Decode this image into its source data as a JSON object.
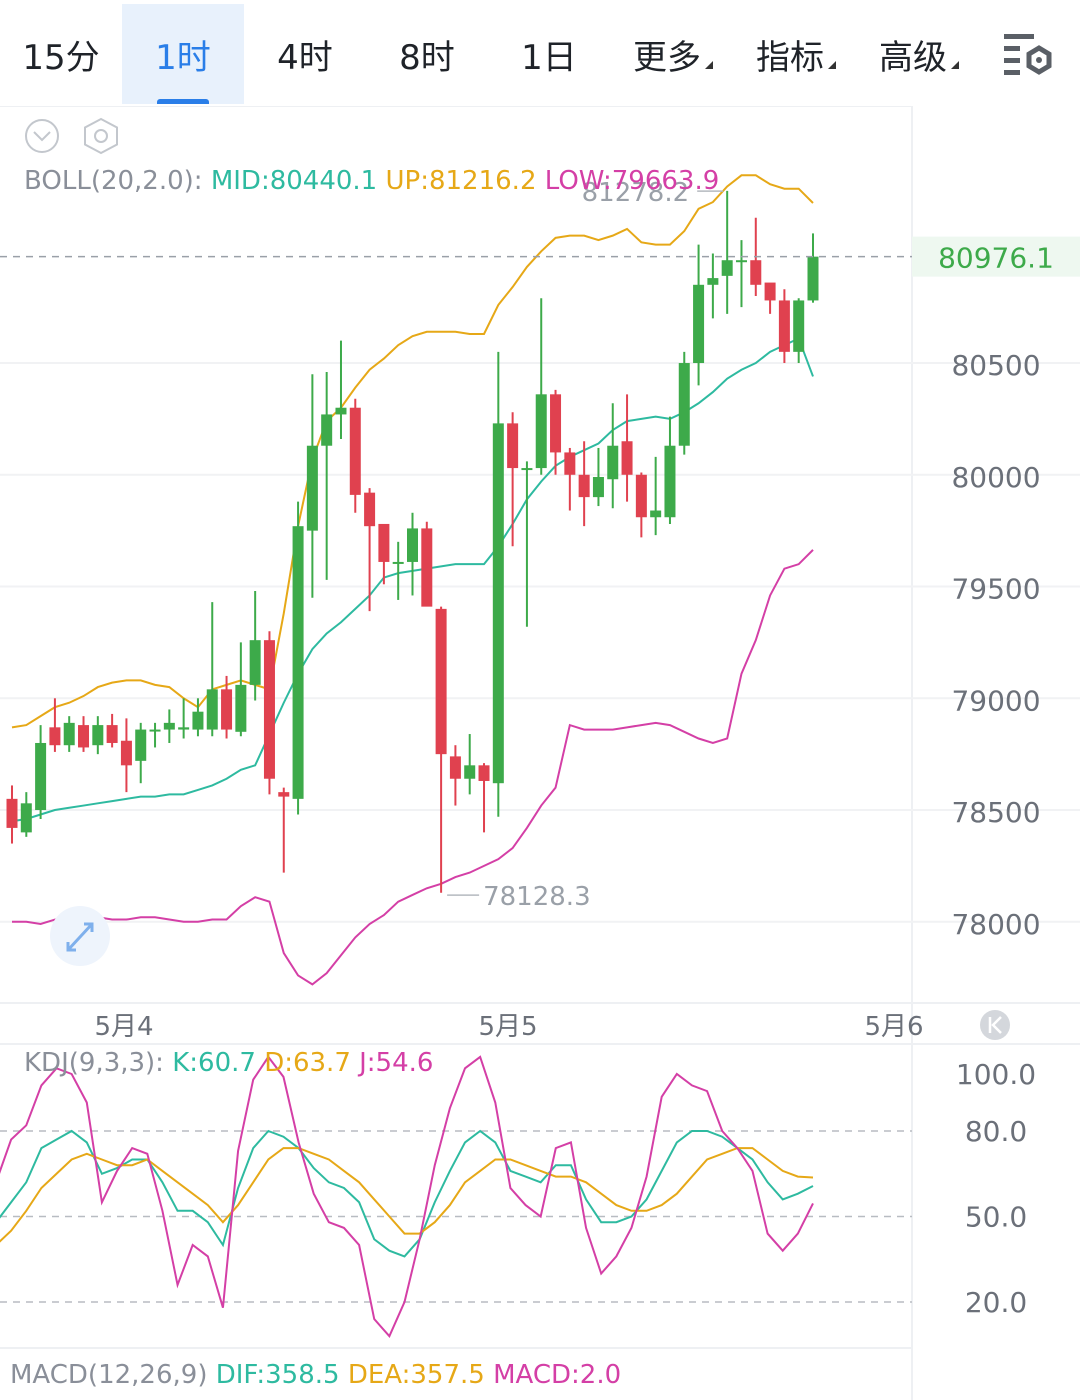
{
  "tabs": [
    {
      "label": "15分",
      "active": false
    },
    {
      "label": "1时",
      "active": true
    },
    {
      "label": "4时",
      "active": false
    },
    {
      "label": "8时",
      "active": false
    },
    {
      "label": "1日",
      "active": false
    },
    {
      "label": "更多",
      "active": false,
      "dropdown": true
    },
    {
      "label": "指标",
      "active": false,
      "dropdown": true
    },
    {
      "label": "高级",
      "active": false,
      "dropdown": true
    }
  ],
  "icons": {
    "settings": "chart-settings-icon",
    "collapse": "chevron-down-circle-icon",
    "gear": "hexagon-gear-icon",
    "expand": "expand-arrows-icon",
    "scroll_latest": "scroll-to-latest-icon"
  },
  "boll": {
    "label": "BOLL(20,2.0):",
    "mid": "MID:80440.1",
    "up": "UP:81216.2",
    "low": "LOW:79663.9"
  },
  "kdj": {
    "label": "KDJ(9,3,3):",
    "k": "K:60.7",
    "d": "D:63.7",
    "j": "J:54.6"
  },
  "macd": {
    "label": "MACD(12,26,9)",
    "dif": "DIF:358.5",
    "dea": "DEA:357.5",
    "macd": "MACD:2.0"
  },
  "colors": {
    "up": "#3daa4a",
    "down": "#e0414f",
    "mid": "#2ebaa0",
    "upper": "#e6a817",
    "lower": "#d43fa6",
    "current": "#3daa4a"
  },
  "chart_data": [
    {
      "type": "candlestick",
      "x_labels": [
        "5月4",
        "5月5",
        "5月6"
      ],
      "y_ticks": [
        80500,
        80000,
        79500,
        79000,
        78500,
        78000
      ],
      "ylim": [
        77650,
        81650
      ],
      "current_price": "80976.1",
      "max_label": "81278.2",
      "min_label": "78128.3",
      "candles": [
        [
          78550,
          78420,
          78610,
          78350
        ],
        [
          78400,
          78530,
          78580,
          78380
        ],
        [
          78500,
          78800,
          78880,
          78460
        ],
        [
          78870,
          78790,
          79000,
          78760
        ],
        [
          78790,
          78890,
          78920,
          78760
        ],
        [
          78880,
          78780,
          78920,
          78760
        ],
        [
          78790,
          78880,
          78920,
          78750
        ],
        [
          78880,
          78800,
          78930,
          78780
        ],
        [
          78810,
          78700,
          78910,
          78580
        ],
        [
          78720,
          78860,
          78890,
          78620
        ],
        [
          78860,
          78860,
          78890,
          78780
        ],
        [
          78860,
          78890,
          78950,
          78800
        ],
        [
          78860,
          78870,
          79000,
          78820
        ],
        [
          78860,
          78940,
          79000,
          78830
        ],
        [
          78860,
          79040,
          79430,
          78830
        ],
        [
          79040,
          78860,
          79100,
          78820
        ],
        [
          78850,
          79060,
          79250,
          78830
        ],
        [
          79060,
          79260,
          79480,
          78990
        ],
        [
          79260,
          78640,
          79300,
          78570
        ],
        [
          78580,
          78560,
          78600,
          78220
        ],
        [
          78550,
          79770,
          79880,
          78480
        ],
        [
          79750,
          80130,
          80450,
          79450
        ],
        [
          80130,
          80270,
          80460,
          79530
        ],
        [
          80270,
          80300,
          80600,
          80160
        ],
        [
          80300,
          79910,
          80340,
          79830
        ],
        [
          79920,
          79770,
          79940,
          79390
        ],
        [
          79780,
          79610,
          79770,
          79510
        ],
        [
          79610,
          79610,
          79700,
          79440
        ],
        [
          79610,
          79760,
          79830,
          79460
        ],
        [
          79760,
          79410,
          79790,
          79480
        ],
        [
          79400,
          78750,
          79410,
          78130
        ],
        [
          78740,
          78640,
          78790,
          78520
        ],
        [
          78640,
          78700,
          78840,
          78570
        ],
        [
          78700,
          78630,
          78710,
          78400
        ],
        [
          78620,
          80230,
          80550,
          78470
        ],
        [
          80230,
          80030,
          80280,
          79680
        ],
        [
          80030,
          80030,
          80060,
          79320
        ],
        [
          80030,
          80360,
          80790,
          80000
        ],
        [
          80360,
          80100,
          80380,
          80000
        ],
        [
          80100,
          80000,
          80120,
          79840
        ],
        [
          80000,
          79900,
          80150,
          79770
        ],
        [
          79900,
          79990,
          80120,
          79860
        ],
        [
          79980,
          80130,
          80320,
          79850
        ],
        [
          80150,
          80000,
          80360,
          79880
        ],
        [
          80000,
          79810,
          80010,
          79720
        ],
        [
          79810,
          79840,
          80080,
          79730
        ],
        [
          79810,
          80130,
          80260,
          79780
        ],
        [
          80130,
          80500,
          80550,
          80090
        ],
        [
          80500,
          80850,
          81030,
          80400
        ],
        [
          80850,
          80880,
          80990,
          80700
        ],
        [
          80890,
          80960,
          81270,
          80720
        ],
        [
          80960,
          80960,
          81050,
          80750
        ],
        [
          80960,
          80850,
          81150,
          80800
        ],
        [
          80860,
          80780,
          80830,
          80720
        ],
        [
          80780,
          80550,
          80830,
          80500
        ],
        [
          80550,
          80780,
          80790,
          80500
        ],
        [
          80780,
          80976,
          81080,
          80770
        ]
      ],
      "bands": {
        "upper": [
          78870,
          78880,
          78920,
          78960,
          78980,
          79010,
          79050,
          79070,
          79080,
          79080,
          79060,
          79050,
          79000,
          78960,
          79040,
          79060,
          79080,
          79060,
          79040,
          79380,
          79770,
          80070,
          80240,
          80300,
          80390,
          80470,
          80520,
          80580,
          80620,
          80640,
          80640,
          80640,
          80630,
          80630,
          80760,
          80840,
          80930,
          81000,
          81060,
          81070,
          81070,
          81050,
          81070,
          81100,
          81040,
          81030,
          81030,
          81090,
          81190,
          81220,
          81290,
          81340,
          81340,
          81300,
          81280,
          81280,
          81216
        ],
        "mid": [
          78450,
          78460,
          78480,
          78500,
          78510,
          78520,
          78530,
          78540,
          78550,
          78560,
          78560,
          78570,
          78570,
          78590,
          78610,
          78640,
          78680,
          78700,
          78840,
          78980,
          79110,
          79220,
          79290,
          79340,
          79400,
          79460,
          79540,
          79560,
          79570,
          79580,
          79590,
          79600,
          79600,
          79600,
          79680,
          79780,
          79890,
          79970,
          80040,
          80080,
          80110,
          80140,
          80200,
          80240,
          80250,
          80260,
          80250,
          80280,
          80320,
          80370,
          80430,
          80470,
          80500,
          80550,
          80580,
          80610,
          80440
        ],
        "lower": [
          78000,
          78000,
          77990,
          78010,
          78020,
          78020,
          78020,
          78010,
          78010,
          78020,
          78020,
          78010,
          78000,
          78000,
          78010,
          78010,
          78070,
          78110,
          78090,
          77860,
          77760,
          77720,
          77770,
          77850,
          77930,
          77990,
          78030,
          78090,
          78120,
          78150,
          78170,
          78200,
          78220,
          78250,
          78280,
          78330,
          78420,
          78520,
          78600,
          78880,
          78860,
          78860,
          78860,
          78870,
          78880,
          78890,
          78880,
          78850,
          78820,
          78800,
          78820,
          79110,
          79260,
          79460,
          79580,
          79600,
          79664
        ]
      }
    },
    {
      "type": "line",
      "title": "KDJ(9,3,3)",
      "y_ticks": [
        100.0,
        80.0,
        50.0,
        20.0
      ],
      "ylim": [
        0,
        110
      ],
      "series": [
        {
          "name": "K",
          "values": [
            48,
            55,
            62,
            74,
            77,
            80,
            76,
            65,
            67,
            70,
            70,
            62,
            52,
            52,
            48,
            40,
            60,
            74,
            80,
            78,
            74,
            67,
            62,
            60,
            55,
            42,
            38,
            36,
            42,
            55,
            66,
            76,
            80,
            76,
            66,
            64,
            62,
            68,
            68,
            56,
            48,
            48,
            50,
            56,
            66,
            76,
            80,
            80,
            78,
            74,
            70,
            62,
            56,
            58,
            60.7
          ]
        },
        {
          "name": "D",
          "values": [
            40,
            45,
            52,
            60,
            65,
            70,
            72,
            70,
            68,
            68,
            70,
            66,
            62,
            58,
            54,
            48,
            54,
            62,
            70,
            74,
            74,
            72,
            70,
            66,
            62,
            56,
            50,
            44,
            44,
            48,
            54,
            62,
            66,
            70,
            70,
            68,
            66,
            64,
            64,
            62,
            58,
            54,
            52,
            52,
            54,
            58,
            64,
            70,
            72,
            74,
            74,
            70,
            66,
            64,
            63.7
          ]
        },
        {
          "name": "J",
          "values": [
            62,
            77,
            82,
            96,
            102,
            100,
            90,
            55,
            66,
            74,
            72,
            52,
            26,
            40,
            36,
            18,
            73,
            98,
            106,
            99,
            76,
            58,
            48,
            46,
            40,
            14,
            8,
            20,
            42,
            68,
            88,
            102,
            106,
            90,
            60,
            54,
            50,
            74,
            76,
            46,
            30,
            36,
            46,
            64,
            92,
            100,
            96,
            94,
            80,
            74,
            66,
            44,
            38,
            44,
            54.6
          ]
        }
      ]
    }
  ]
}
